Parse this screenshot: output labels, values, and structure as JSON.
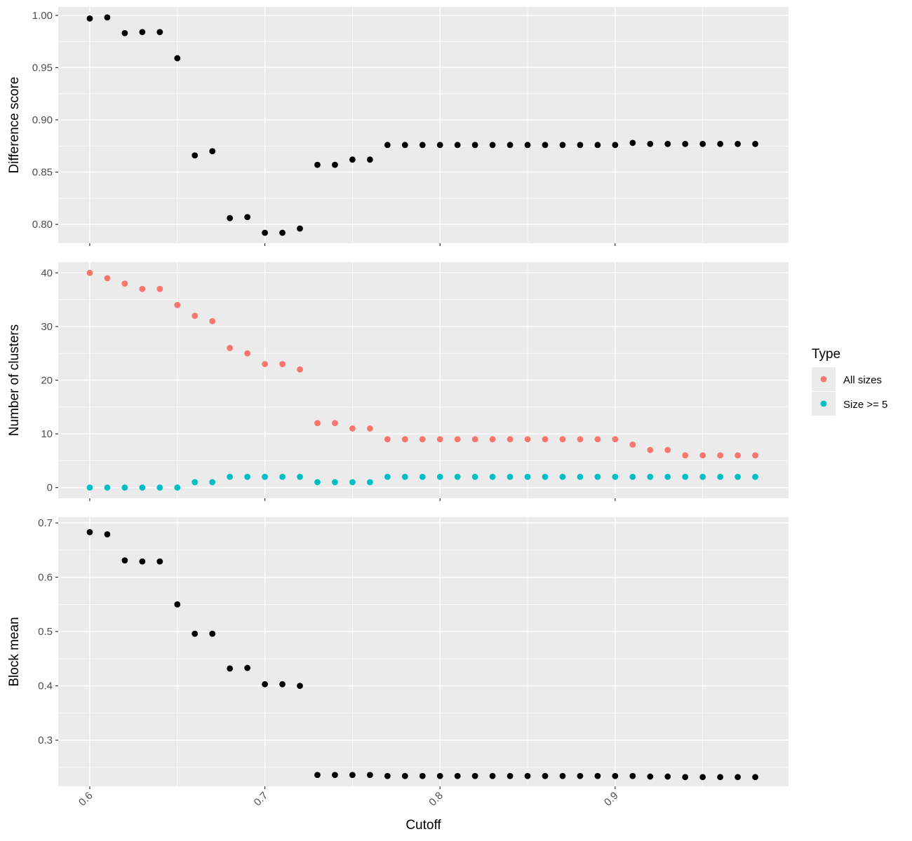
{
  "chart_data": [
    {
      "type": "scatter",
      "xlabel": "",
      "ylabel": "Difference score",
      "xlim": [
        0.582,
        0.999
      ],
      "ylim": [
        0.782,
        1.008
      ],
      "x_ticks": [
        0.6,
        0.7,
        0.8,
        0.9
      ],
      "x_tick_labels": [
        "",
        "",
        "",
        ""
      ],
      "y_ticks": [
        0.8,
        0.85,
        0.9,
        0.95,
        1.0
      ],
      "y_tick_labels": [
        "0.80",
        "0.85",
        "0.90",
        "0.95",
        "1.00"
      ],
      "grid": true,
      "series": [
        {
          "color": "#000000",
          "x": [
            0.6,
            0.61,
            0.62,
            0.63,
            0.64,
            0.65,
            0.66,
            0.67,
            0.68,
            0.69,
            0.7,
            0.71,
            0.72,
            0.73,
            0.74,
            0.75,
            0.76,
            0.77,
            0.78,
            0.79,
            0.8,
            0.81,
            0.82,
            0.83,
            0.84,
            0.85,
            0.86,
            0.87,
            0.88,
            0.89,
            0.9,
            0.91,
            0.92,
            0.93,
            0.94,
            0.95,
            0.96,
            0.97,
            0.98
          ],
          "y": [
            0.997,
            0.998,
            0.983,
            0.984,
            0.984,
            0.959,
            0.866,
            0.87,
            0.806,
            0.807,
            0.792,
            0.792,
            0.796,
            0.857,
            0.857,
            0.862,
            0.862,
            0.876,
            0.876,
            0.876,
            0.876,
            0.876,
            0.876,
            0.876,
            0.876,
            0.876,
            0.876,
            0.876,
            0.876,
            0.876,
            0.876,
            0.878,
            0.877,
            0.877,
            0.877,
            0.877,
            0.877,
            0.877,
            0.877
          ]
        }
      ]
    },
    {
      "type": "scatter",
      "xlabel": "",
      "ylabel": "Number of clusters",
      "xlim": [
        0.582,
        0.999
      ],
      "ylim": [
        -2,
        42
      ],
      "x_ticks": [
        0.6,
        0.7,
        0.8,
        0.9
      ],
      "x_tick_labels": [
        "",
        "",
        "",
        ""
      ],
      "y_ticks": [
        0,
        10,
        20,
        30,
        40
      ],
      "y_tick_labels": [
        "0",
        "10",
        "20",
        "30",
        "40"
      ],
      "grid": true,
      "legend_position": "right",
      "legend_title": "Type",
      "series": [
        {
          "name": "All sizes",
          "color": "#f8766d",
          "x": [
            0.6,
            0.61,
            0.62,
            0.63,
            0.64,
            0.65,
            0.66,
            0.67,
            0.68,
            0.69,
            0.7,
            0.71,
            0.72,
            0.73,
            0.74,
            0.75,
            0.76,
            0.77,
            0.78,
            0.79,
            0.8,
            0.81,
            0.82,
            0.83,
            0.84,
            0.85,
            0.86,
            0.87,
            0.88,
            0.89,
            0.9,
            0.91,
            0.92,
            0.93,
            0.94,
            0.95,
            0.96,
            0.97,
            0.98
          ],
          "y": [
            40,
            39,
            38,
            37,
            37,
            34,
            32,
            31,
            26,
            25,
            23,
            23,
            22,
            12,
            12,
            11,
            11,
            9,
            9,
            9,
            9,
            9,
            9,
            9,
            9,
            9,
            9,
            9,
            9,
            9,
            9,
            8,
            7,
            7,
            6,
            6,
            6,
            6,
            6
          ]
        },
        {
          "name": "Size >= 5",
          "color": "#00bfc4",
          "x": [
            0.6,
            0.61,
            0.62,
            0.63,
            0.64,
            0.65,
            0.66,
            0.67,
            0.68,
            0.69,
            0.7,
            0.71,
            0.72,
            0.73,
            0.74,
            0.75,
            0.76,
            0.77,
            0.78,
            0.79,
            0.8,
            0.81,
            0.82,
            0.83,
            0.84,
            0.85,
            0.86,
            0.87,
            0.88,
            0.89,
            0.9,
            0.91,
            0.92,
            0.93,
            0.94,
            0.95,
            0.96,
            0.97,
            0.98
          ],
          "y": [
            0,
            0,
            0,
            0,
            0,
            0,
            1,
            1,
            2,
            2,
            2,
            2,
            2,
            1,
            1,
            1,
            1,
            2,
            2,
            2,
            2,
            2,
            2,
            2,
            2,
            2,
            2,
            2,
            2,
            2,
            2,
            2,
            2,
            2,
            2,
            2,
            2,
            2,
            2
          ]
        }
      ]
    },
    {
      "type": "scatter",
      "xlabel": "Cutoff",
      "ylabel": "Block mean",
      "xlim": [
        0.582,
        0.999
      ],
      "ylim": [
        0.215,
        0.7105
      ],
      "x_ticks": [
        0.6,
        0.7,
        0.8,
        0.9
      ],
      "x_tick_labels": [
        "0.6",
        "0.7",
        "0.8",
        "0.9"
      ],
      "y_ticks": [
        0.3,
        0.4,
        0.5,
        0.6,
        0.7
      ],
      "y_tick_labels": [
        "0.3",
        "0.4",
        "0.5",
        "0.6",
        "0.7"
      ],
      "grid": true,
      "series": [
        {
          "color": "#000000",
          "x": [
            0.6,
            0.61,
            0.62,
            0.63,
            0.64,
            0.65,
            0.66,
            0.67,
            0.68,
            0.69,
            0.7,
            0.71,
            0.72,
            0.73,
            0.74,
            0.75,
            0.76,
            0.77,
            0.78,
            0.79,
            0.8,
            0.81,
            0.82,
            0.83,
            0.84,
            0.85,
            0.86,
            0.87,
            0.88,
            0.89,
            0.9,
            0.91,
            0.92,
            0.93,
            0.94,
            0.95,
            0.96,
            0.97,
            0.98
          ],
          "y": [
            0.683,
            0.679,
            0.631,
            0.629,
            0.629,
            0.55,
            0.496,
            0.496,
            0.432,
            0.433,
            0.403,
            0.403,
            0.4,
            0.236,
            0.236,
            0.236,
            0.236,
            0.234,
            0.234,
            0.234,
            0.234,
            0.234,
            0.234,
            0.234,
            0.234,
            0.234,
            0.234,
            0.234,
            0.234,
            0.234,
            0.234,
            0.234,
            0.233,
            0.233,
            0.232,
            0.232,
            0.232,
            0.232,
            0.232
          ]
        }
      ]
    }
  ]
}
